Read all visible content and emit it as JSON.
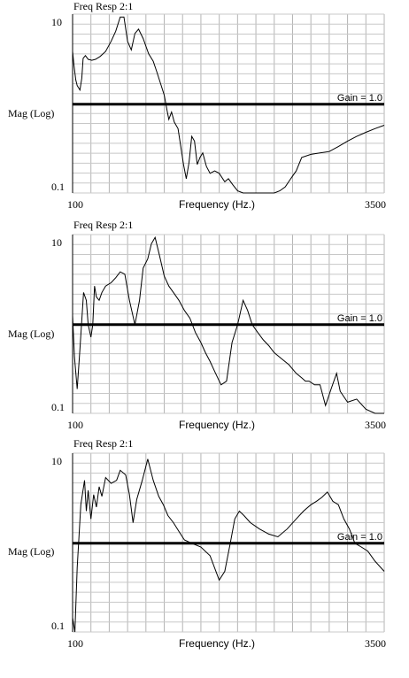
{
  "chart_data": [
    {
      "type": "line",
      "title": "Freq Resp 2:1",
      "xlabel": "Frequency (Hz.)",
      "ylabel": "Mag (Log)",
      "x_ticks": [
        "100",
        "3500"
      ],
      "y_ticks": [
        "10",
        "0.1"
      ],
      "xlim": [
        100,
        3500
      ],
      "ylim": [
        0.08,
        13
      ],
      "yscale": "log",
      "reference_line": {
        "label": "Gain = 1.0",
        "value": 1.0
      },
      "series": [
        {
          "x": [
            100,
            115,
            135,
            150,
            165,
            180,
            200,
            215,
            240,
            270,
            310,
            350,
            400,
            460,
            520,
            570,
            620,
            660,
            700,
            740,
            780,
            820,
            870,
            930,
            980,
            1020,
            1060,
            1100,
            1130,
            1150,
            1180,
            1210,
            1250,
            1280,
            1310,
            1340,
            1370,
            1400,
            1430,
            1460,
            1490,
            1520,
            1560,
            1600,
            1650,
            1700,
            1760,
            1800,
            1850,
            1900,
            1960,
            2050,
            2150,
            2240,
            2300,
            2360,
            2420,
            2480,
            2540,
            2600,
            2700,
            2800,
            2900,
            3000,
            3100,
            3200,
            3300,
            3400,
            3500
          ],
          "values": [
            4.5,
            3.0,
            2.0,
            1.7,
            1.6,
            1.5,
            2.1,
            3.7,
            4.0,
            3.6,
            3.5,
            3.6,
            3.9,
            4.5,
            6.0,
            8.0,
            12.0,
            12.0,
            6.0,
            4.7,
            7.5,
            8.5,
            6.5,
            4.2,
            3.4,
            2.5,
            1.8,
            1.3,
            0.85,
            0.65,
            0.8,
            0.6,
            0.5,
            0.3,
            0.18,
            0.12,
            0.19,
            0.4,
            0.35,
            0.18,
            0.22,
            0.25,
            0.17,
            0.14,
            0.15,
            0.14,
            0.11,
            0.12,
            0.1,
            0.085,
            0.08,
            0.08,
            0.08,
            0.08,
            0.08,
            0.085,
            0.095,
            0.12,
            0.15,
            0.22,
            0.24,
            0.25,
            0.26,
            0.3,
            0.35,
            0.4,
            0.45,
            0.5,
            0.55
          ]
        }
      ]
    },
    {
      "type": "line",
      "title": "Freq Resp 2:1",
      "xlabel": "Frequency (Hz.)",
      "ylabel": "Mag (Log)",
      "x_ticks": [
        "100",
        "3500"
      ],
      "y_ticks": [
        "10",
        "0.1"
      ],
      "xlim": [
        100,
        3500
      ],
      "ylim": [
        0.08,
        13
      ],
      "yscale": "log",
      "reference_line": {
        "label": "Gain = 1.0",
        "value": 1.0
      },
      "series": [
        {
          "x": [
            100,
            120,
            150,
            180,
            220,
            250,
            270,
            300,
            320,
            340,
            360,
            390,
            420,
            460,
            520,
            570,
            620,
            670,
            720,
            780,
            830,
            870,
            920,
            960,
            1000,
            1050,
            1100,
            1150,
            1200,
            1260,
            1320,
            1380,
            1440,
            1500,
            1550,
            1600,
            1660,
            1720,
            1780,
            1840,
            1900,
            1960,
            2010,
            2060,
            2120,
            2180,
            2240,
            2300,
            2380,
            2460,
            2540,
            2600,
            2640,
            2680,
            2740,
            2800,
            2860,
            2920,
            2980,
            3020,
            3100,
            3200,
            3300,
            3400,
            3500
          ],
          "values": [
            1.3,
            0.4,
            0.16,
            0.5,
            2.5,
            2.0,
            1.0,
            0.7,
            1.0,
            3.0,
            2.2,
            2.0,
            2.5,
            3.0,
            3.3,
            3.8,
            4.5,
            4.2,
            2.0,
            1.0,
            2.0,
            5.0,
            6.5,
            10.0,
            12.0,
            7.0,
            4.0,
            3.0,
            2.5,
            2.0,
            1.5,
            1.2,
            0.8,
            0.6,
            0.45,
            0.35,
            0.25,
            0.18,
            0.2,
            0.6,
            1.0,
            2.0,
            1.5,
            1.0,
            0.8,
            0.65,
            0.55,
            0.45,
            0.38,
            0.32,
            0.25,
            0.22,
            0.2,
            0.2,
            0.18,
            0.18,
            0.1,
            0.16,
            0.25,
            0.15,
            0.11,
            0.12,
            0.09,
            0.08,
            0.08
          ]
        }
      ]
    },
    {
      "type": "line",
      "title": "Freq Resp 2:1",
      "xlabel": "Frequency (Hz.)",
      "ylabel": "Mag (Log)",
      "x_ticks": [
        "100",
        "3500"
      ],
      "y_ticks": [
        "10",
        "0.1"
      ],
      "xlim": [
        100,
        3500
      ],
      "ylim": [
        0.08,
        13
      ],
      "yscale": "log",
      "reference_line": {
        "label": "Gain = 1.0",
        "value": 1.0
      },
      "series": [
        {
          "x": [
            100,
            125,
            150,
            190,
            230,
            250,
            270,
            300,
            330,
            360,
            390,
            420,
            460,
            520,
            580,
            620,
            680,
            720,
            760,
            800,
            860,
            920,
            980,
            1040,
            1090,
            1140,
            1200,
            1260,
            1320,
            1400,
            1500,
            1600,
            1700,
            1760,
            1820,
            1870,
            1920,
            1970,
            2040,
            2140,
            2240,
            2340,
            2440,
            2540,
            2620,
            2700,
            2760,
            2820,
            2880,
            2940,
            3000,
            3060,
            3120,
            3180,
            3250,
            3320,
            3400,
            3500
          ],
          "values": [
            0.12,
            0.08,
            0.5,
            3.0,
            6.0,
            2.5,
            4.5,
            2.0,
            4.0,
            2.8,
            5.0,
            3.8,
            6.5,
            5.5,
            6.0,
            8.0,
            7.0,
            4.0,
            1.8,
            3.5,
            6.0,
            11.0,
            6.0,
            3.8,
            3.0,
            2.2,
            1.8,
            1.4,
            1.1,
            1.0,
            0.9,
            0.7,
            0.35,
            0.45,
            1.0,
            2.0,
            2.5,
            2.2,
            1.8,
            1.5,
            1.3,
            1.2,
            1.5,
            2.0,
            2.5,
            3.0,
            3.3,
            3.7,
            4.3,
            3.3,
            3.0,
            2.0,
            1.5,
            1.0,
            0.9,
            0.8,
            0.6,
            0.45
          ]
        }
      ]
    }
  ]
}
